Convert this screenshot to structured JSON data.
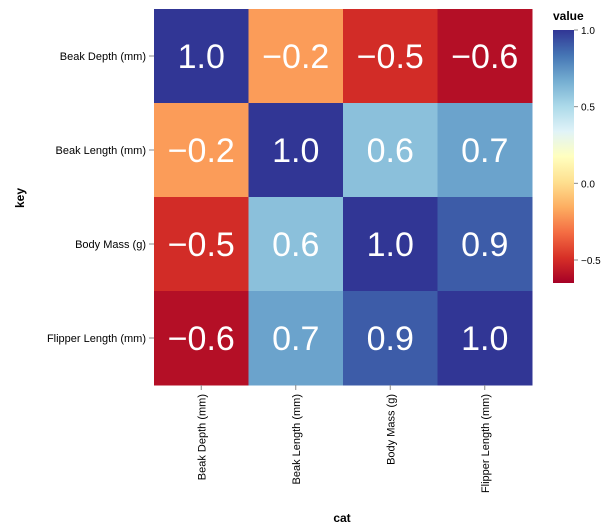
{
  "chart_data": {
    "type": "heatmap",
    "x_categories": [
      "Beak Depth (mm)",
      "Beak Length (mm)",
      "Body Mass (g)",
      "Flipper Length (mm)"
    ],
    "y_categories": [
      "Beak Depth (mm)",
      "Beak Length (mm)",
      "Body Mass (g)",
      "Flipper Length (mm)"
    ],
    "values": [
      [
        1.0,
        -0.2,
        -0.5,
        -0.6
      ],
      [
        -0.2,
        1.0,
        0.6,
        0.7
      ],
      [
        -0.5,
        0.6,
        1.0,
        0.9
      ],
      [
        -0.6,
        0.7,
        0.9,
        1.0
      ]
    ],
    "cell_labels": [
      [
        "1.0",
        "−0.2",
        "−0.5",
        "−0.6"
      ],
      [
        "−0.2",
        "1.0",
        "0.6",
        "0.7"
      ],
      [
        "−0.5",
        "0.6",
        "1.0",
        "0.9"
      ],
      [
        "−0.6",
        "0.7",
        "0.9",
        "1.0"
      ]
    ],
    "xlabel": "cat",
    "ylabel": "key",
    "legend": {
      "title": "value",
      "placement": "right",
      "range": [
        -0.65,
        1.0
      ],
      "ticks": [
        1.0,
        0.5,
        0.0,
        -0.5
      ],
      "tick_labels": [
        "1.0",
        "0.5",
        "0.0",
        "−0.5"
      ]
    },
    "colormap": [
      "#a50026",
      "#d73027",
      "#f46d43",
      "#fdae61",
      "#fee090",
      "#ffffbf",
      "#e0f3f8",
      "#abd9e9",
      "#74add1",
      "#4575b4",
      "#313695"
    ]
  }
}
